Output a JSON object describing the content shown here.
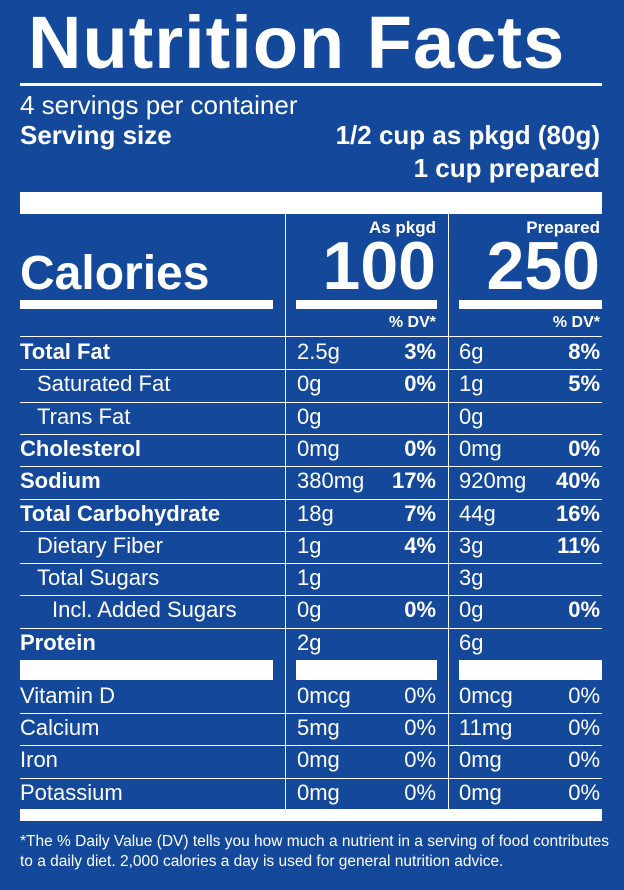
{
  "title": "Nutrition Facts",
  "servings_per_container": "4 servings per container",
  "serving_size_label": "Serving size",
  "serving_size_pkgd": "1/2 cup as pkgd (80g)",
  "serving_size_prepared": "1 cup prepared",
  "columns": {
    "pkgd": "As pkgd",
    "prepared": "Prepared"
  },
  "calories": {
    "label": "Calories",
    "pkgd": "100",
    "prepared": "250"
  },
  "dv_header": "% DV*",
  "nutrients": [
    {
      "label": "Total Fat",
      "bold": true,
      "indent": 0,
      "pkgd_amt": "2.5g",
      "pkgd_dv": "3%",
      "prep_amt": "6g",
      "prep_dv": "8%"
    },
    {
      "label": "Saturated Fat",
      "bold": false,
      "indent": 1,
      "pkgd_amt": "0g",
      "pkgd_dv": "0%",
      "prep_amt": "1g",
      "prep_dv": "5%"
    },
    {
      "label": "Trans Fat",
      "bold": false,
      "indent": 1,
      "pkgd_amt": "0g",
      "pkgd_dv": "",
      "prep_amt": "0g",
      "prep_dv": ""
    },
    {
      "label": "Cholesterol",
      "bold": true,
      "indent": 0,
      "pkgd_amt": "0mg",
      "pkgd_dv": "0%",
      "prep_amt": "0mg",
      "prep_dv": "0%"
    },
    {
      "label": "Sodium",
      "bold": true,
      "indent": 0,
      "pkgd_amt": "380mg",
      "pkgd_dv": "17%",
      "prep_amt": "920mg",
      "prep_dv": "40%"
    },
    {
      "label": "Total Carbohydrate",
      "bold": true,
      "indent": 0,
      "pkgd_amt": "18g",
      "pkgd_dv": "7%",
      "prep_amt": "44g",
      "prep_dv": "16%"
    },
    {
      "label": "Dietary Fiber",
      "bold": false,
      "indent": 1,
      "pkgd_amt": "1g",
      "pkgd_dv": "4%",
      "prep_amt": "3g",
      "prep_dv": "11%"
    },
    {
      "label": "Total Sugars",
      "bold": false,
      "indent": 1,
      "pkgd_amt": "1g",
      "pkgd_dv": "",
      "prep_amt": "3g",
      "prep_dv": ""
    },
    {
      "label": "Incl. Added Sugars",
      "bold": false,
      "indent": 2,
      "pkgd_amt": "0g",
      "pkgd_dv": "0%",
      "prep_amt": "0g",
      "prep_dv": "0%"
    },
    {
      "label": "Protein",
      "bold": true,
      "indent": 0,
      "pkgd_amt": "2g",
      "pkgd_dv": "",
      "prep_amt": "6g",
      "prep_dv": ""
    }
  ],
  "vitamins": [
    {
      "label": "Vitamin D",
      "pkgd_amt": "0mcg",
      "pkgd_dv": "0%",
      "prep_amt": "0mcg",
      "prep_dv": "0%"
    },
    {
      "label": "Calcium",
      "pkgd_amt": "5mg",
      "pkgd_dv": "0%",
      "prep_amt": "11mg",
      "prep_dv": "0%"
    },
    {
      "label": "Iron",
      "pkgd_amt": "0mg",
      "pkgd_dv": "0%",
      "prep_amt": "0mg",
      "prep_dv": "0%"
    },
    {
      "label": "Potassium",
      "pkgd_amt": "0mg",
      "pkgd_dv": "0%",
      "prep_amt": "0mg",
      "prep_dv": "0%"
    }
  ],
  "footnote": "*The % Daily Value (DV) tells you how much a nutrient in a serving of food contributes to a daily diet. 2,000 calories a day is used for general nutrition advice.",
  "colors": {
    "background": "#13489a",
    "text": "#ffffff"
  }
}
